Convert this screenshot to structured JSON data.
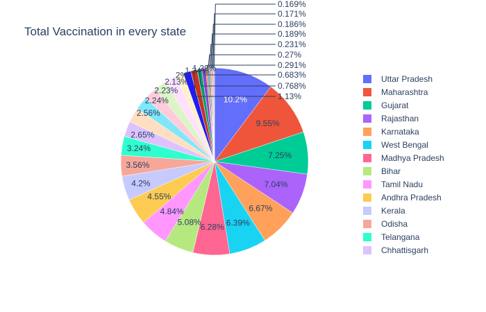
{
  "chart_data": {
    "type": "pie",
    "title": "Total Vaccination in every state",
    "slices": [
      {
        "label": "Uttar Pradesh",
        "percent": 10.2,
        "text": "10.2%",
        "color": "#636efa"
      },
      {
        "label": "Maharashtra",
        "percent": 9.55,
        "text": "9.55%",
        "color": "#EF553B"
      },
      {
        "label": "Gujarat",
        "percent": 7.25,
        "text": "7.25%",
        "color": "#00cc96"
      },
      {
        "label": "Rajasthan",
        "percent": 7.04,
        "text": "7.04%",
        "color": "#ab63fa"
      },
      {
        "label": "Karnataka",
        "percent": 6.67,
        "text": "6.67%",
        "color": "#FFA15A"
      },
      {
        "label": "West Bengal",
        "percent": 6.39,
        "text": "6.39%",
        "color": "#19d3f3"
      },
      {
        "label": "Madhya Pradesh",
        "percent": 6.28,
        "text": "6.28%",
        "color": "#FF6692"
      },
      {
        "label": "Bihar",
        "percent": 5.08,
        "text": "5.08%",
        "color": "#B6E880"
      },
      {
        "label": "Tamil Nadu",
        "percent": 4.84,
        "text": "4.84%",
        "color": "#FF97FF"
      },
      {
        "label": "Andhra Pradesh",
        "percent": 4.55,
        "text": "4.55%",
        "color": "#FECB52"
      },
      {
        "label": "Kerala",
        "percent": 4.2,
        "text": "4.2%",
        "color": "#C6CAFD"
      },
      {
        "label": "Odisha",
        "percent": 3.56,
        "text": "3.56%",
        "color": "#F7A799"
      },
      {
        "label": "Telangana",
        "percent": 3.24,
        "text": "3.24%",
        "color": "#2FFFCE"
      },
      {
        "label": "Chhattisgarh",
        "percent": 2.65,
        "text": "2.65%",
        "color": "#DCC3FD"
      },
      {
        "label": "",
        "percent": 2.56,
        "text": "2.56%",
        "color": "#FFDEC2"
      },
      {
        "label": "",
        "percent": 2.24,
        "text": "2.24%",
        "color": "#7FE7F9"
      },
      {
        "label": "",
        "percent": 2.23,
        "text": "2.23%",
        "color": "#FFCCD9"
      },
      {
        "label": "",
        "percent": 2.13,
        "text": "2.13%",
        "color": "#DDF4C7"
      },
      {
        "label": "",
        "percent": 2.0,
        "text": "2%",
        "color": "#FFE0FF"
      },
      {
        "label": "",
        "percent": 1.34,
        "text": "1.34%",
        "color": "#FFF0C9"
      },
      {
        "label": "",
        "percent": 1.29,
        "text": "1.29%",
        "color": "#1F1CF5"
      },
      {
        "label": "",
        "percent": 1.13,
        "text": "1.13%",
        "color": "#C8321E"
      },
      {
        "label": "",
        "percent": 0.768,
        "text": "0.768%",
        "color": "#00A06E"
      },
      {
        "label": "",
        "percent": 0.683,
        "text": "0.683%",
        "color": "#8A45D6"
      },
      {
        "label": "",
        "percent": 0.291,
        "text": "0.291%",
        "color": "#E8823A"
      },
      {
        "label": "",
        "percent": 0.27,
        "text": "0.27%",
        "color": "#1BA6C4"
      },
      {
        "label": "",
        "percent": 0.231,
        "text": "0.231%",
        "color": "#E0507A"
      },
      {
        "label": "",
        "percent": 0.189,
        "text": "0.189%",
        "color": "#94C860"
      },
      {
        "label": "",
        "percent": 0.186,
        "text": "0.186%",
        "color": "#E07AE0"
      },
      {
        "label": "",
        "percent": 0.171,
        "text": "0.171%",
        "color": "#D8A83A"
      },
      {
        "label": "",
        "percent": 0.169,
        "text": "0.169%",
        "color": "#A9AEE8"
      }
    ],
    "legend": {
      "placement": "right",
      "entries": [
        "Uttar Pradesh",
        "Maharashtra",
        "Gujarat",
        "Rajasthan",
        "Karnataka",
        "West Bengal",
        "Madhya Pradesh",
        "Bihar",
        "Tamil Nadu",
        "Andhra Pradesh",
        "Kerala",
        "Odisha",
        "Telangana",
        "Chhattisgarh"
      ]
    },
    "colors": {
      "title": "#2a3f5f",
      "text_dark": "#2a3f5f",
      "text_light": "#ffffff",
      "leader": "#2a3f5f"
    }
  }
}
